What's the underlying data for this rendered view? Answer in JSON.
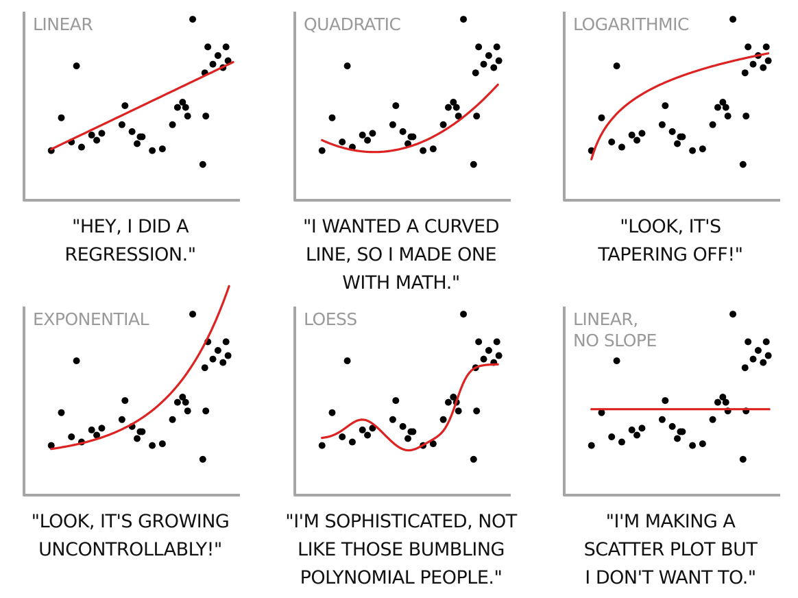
{
  "colors": {
    "axis": "#a6a6a6",
    "fit": "#dd2222",
    "points": "#000000",
    "title": "#9a9a9a"
  },
  "points": [
    {
      "x": 1,
      "y": 2.0
    },
    {
      "x": 2,
      "y": 3.9
    },
    {
      "x": 3,
      "y": 2.5
    },
    {
      "x": 3.5,
      "y": 6.9
    },
    {
      "x": 4,
      "y": 2.2
    },
    {
      "x": 5,
      "y": 2.9
    },
    {
      "x": 5.5,
      "y": 2.6
    },
    {
      "x": 6,
      "y": 3.0
    },
    {
      "x": 8,
      "y": 3.5
    },
    {
      "x": 8.3,
      "y": 4.6
    },
    {
      "x": 9,
      "y": 3.1
    },
    {
      "x": 9.5,
      "y": 2.4
    },
    {
      "x": 9.8,
      "y": 2.8
    },
    {
      "x": 10,
      "y": 2.8
    },
    {
      "x": 11,
      "y": 2.0
    },
    {
      "x": 12,
      "y": 2.1
    },
    {
      "x": 13,
      "y": 3.5
    },
    {
      "x": 13.5,
      "y": 4.5
    },
    {
      "x": 14,
      "y": 4.8
    },
    {
      "x": 14.3,
      "y": 4.5
    },
    {
      "x": 14.5,
      "y": 4.0
    },
    {
      "x": 15,
      "y": 9.6
    },
    {
      "x": 16,
      "y": 1.2
    },
    {
      "x": 16.3,
      "y": 4.0
    },
    {
      "x": 16.5,
      "y": 8.0
    },
    {
      "x": 17,
      "y": 7.0
    },
    {
      "x": 17.5,
      "y": 7.5
    },
    {
      "x": 18,
      "y": 6.8
    },
    {
      "x": 18.3,
      "y": 8.0
    },
    {
      "x": 18.5,
      "y": 7.2
    },
    {
      "x": 16.2,
      "y": 6.5
    }
  ],
  "chart_data": [
    {
      "type": "scatter",
      "title": "LINEAR",
      "fit": "linear",
      "caption": "\"HEY, I DID A\nREGRESSION.\"",
      "xlim": [
        0,
        19
      ],
      "ylim": [
        0,
        10
      ],
      "grid": false
    },
    {
      "type": "scatter",
      "title": "QUADRATIC",
      "fit": "quadratic",
      "caption": "\"I WANTED A CURVED\nLINE, SO I MADE ONE\nWITH MATH.\"",
      "xlim": [
        0,
        19
      ],
      "ylim": [
        0,
        10
      ],
      "grid": false
    },
    {
      "type": "scatter",
      "title": "LOGARITHMIC",
      "fit": "logarithmic",
      "caption": "\"LOOK, IT'S\nTAPERING OFF!\"",
      "xlim": [
        0,
        19
      ],
      "ylim": [
        0,
        10
      ],
      "grid": false
    },
    {
      "type": "scatter",
      "title": "EXPONENTIAL",
      "fit": "exponential",
      "caption": "\"LOOK, IT'S GROWING\nUNCONTROLLABLY!\"",
      "xlim": [
        0,
        19
      ],
      "ylim": [
        0,
        10
      ],
      "grid": false
    },
    {
      "type": "scatter",
      "title": "LOESS",
      "fit": "loess",
      "caption": "\"I'M SOPHISTICATED, NOT\nLIKE THOSE BUMBLING\nPOLYNOMIAL PEOPLE.\"",
      "xlim": [
        0,
        19
      ],
      "ylim": [
        0,
        10
      ],
      "grid": false
    },
    {
      "type": "scatter",
      "title": "LINEAR,\nNO SLOPE",
      "fit": "constant",
      "caption": "\"I'M MAKING A\nSCATTER PLOT BUT\nI DON'T WANT TO.\"",
      "xlim": [
        0,
        19
      ],
      "ylim": [
        0,
        10
      ],
      "grid": false
    }
  ]
}
